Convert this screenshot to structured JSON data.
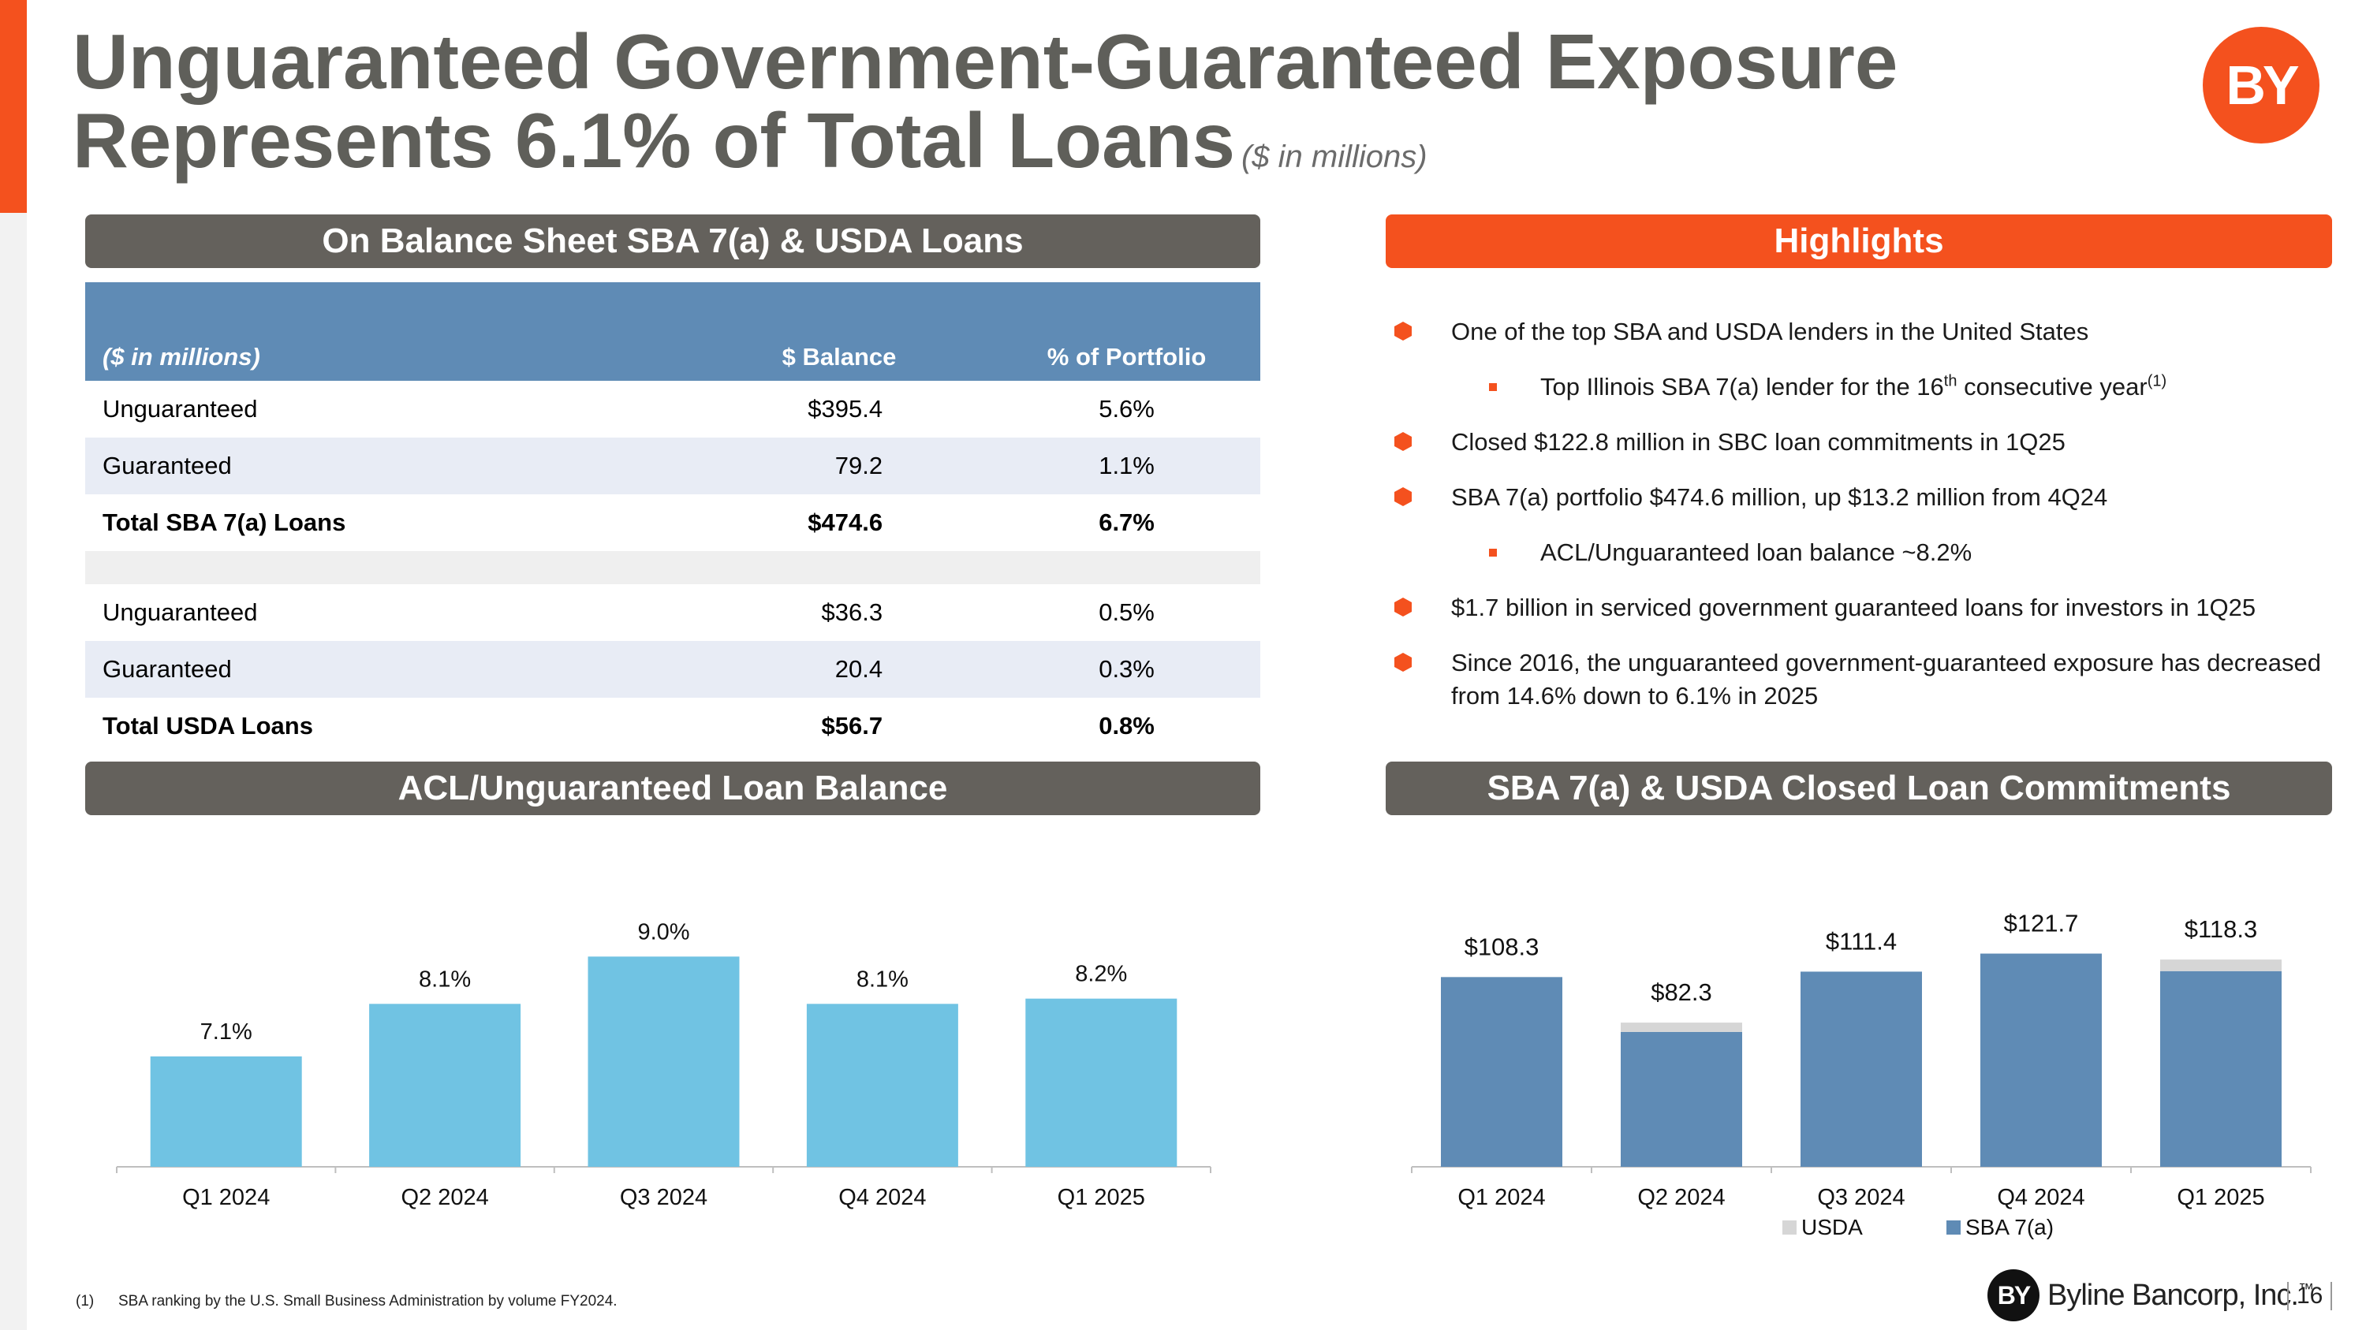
{
  "colors": {
    "accent": "#f4511e",
    "header_gray": "#64615c",
    "table_header": "#5f8bb5",
    "acl_bar": "#70c3e3",
    "sba_bar": "#5f8bb5",
    "usda_bar": "#d6d6d6"
  },
  "title": {
    "line1": "Unguaranteed Government-Guaranteed Exposure",
    "line2": "Represents 6.1% of Total Loans",
    "subtitle": "($ in millions)"
  },
  "logo": {
    "text": "BY"
  },
  "sections": {
    "table_header": "On Balance Sheet SBA 7(a) & USDA Loans",
    "highlights_header": "Highlights",
    "acl_header": "ACL/Unguaranteed Loan Balance",
    "commitments_header": "SBA 7(a) & USDA Closed Loan Commitments"
  },
  "table": {
    "headers": [
      "($ in millions)",
      "$ Balance",
      "% of Portfolio"
    ],
    "rows": [
      [
        "Unguaranteed",
        "$395.4",
        "5.6%"
      ],
      [
        "Guaranteed",
        "79.2",
        "1.1%"
      ],
      [
        "Total SBA 7(a) Loans",
        "$474.6",
        "6.7%"
      ],
      [
        "",
        "",
        ""
      ],
      [
        "Unguaranteed",
        "$36.3",
        "0.5%"
      ],
      [
        "Guaranteed",
        "20.4",
        "0.3%"
      ],
      [
        "Total USDA Loans",
        "$56.7",
        "0.8%"
      ]
    ]
  },
  "highlights": {
    "h1": "One of the top SBA and USDA lenders in the United States",
    "h1_sub_a": "Top Illinois SBA 7(a) lender for the 16",
    "h1_sub_sup1": "th",
    "h1_sub_b": " consecutive year",
    "h1_sub_sup2": "(1)",
    "h2": "Closed $122.8 million in SBC loan commitments in 1Q25",
    "h3": "SBA 7(a) portfolio $474.6 million, up $13.2 million from 4Q24",
    "h3_sub": "ACL/Unguaranteed loan balance ~8.2%",
    "h4": "$1.7 billion in serviced government guaranteed loans for investors in 1Q25",
    "h5": "Since 2016, the unguaranteed government-guaranteed exposure has decreased from 14.6% down to 6.1% in 2025"
  },
  "chart_data": [
    {
      "type": "bar",
      "categories": [
        "Q1 2024",
        "Q2 2024",
        "Q3 2024",
        "Q4 2024",
        "Q1 2025"
      ],
      "values": [
        7.1,
        8.1,
        9.0,
        8.1,
        8.2
      ],
      "labels": [
        "7.1%",
        "8.1%",
        "9.0%",
        "8.1%",
        "8.2%"
      ],
      "ylim": [
        5,
        9.5
      ],
      "grid": false
    },
    {
      "type": "bar",
      "stacked": true,
      "categories": [
        "Q1 2024",
        "Q2 2024",
        "Q3 2024",
        "Q4 2024",
        "Q1 2025"
      ],
      "series": [
        {
          "name": "SBA 7(a)",
          "values": [
            108.3,
            77.0,
            111.4,
            121.7,
            111.7
          ]
        },
        {
          "name": "USDA",
          "values": [
            0,
            5.3,
            0,
            0,
            6.6
          ]
        }
      ],
      "totals": [
        "$108.3",
        "$82.3",
        "$111.4",
        "$121.7",
        "$118.3"
      ],
      "legend": [
        "USDA",
        "SBA 7(a)"
      ],
      "legend_position": "bottom",
      "ylim": [
        0,
        135
      ],
      "grid": false
    }
  ],
  "footnote": {
    "num": "(1)",
    "text": "SBA ranking by the U.S. Small Business Administration by volume FY2024."
  },
  "footer": {
    "logo": "BY",
    "company": "Byline Bancorp, Inc.",
    "tm": "™",
    "page": "16"
  }
}
